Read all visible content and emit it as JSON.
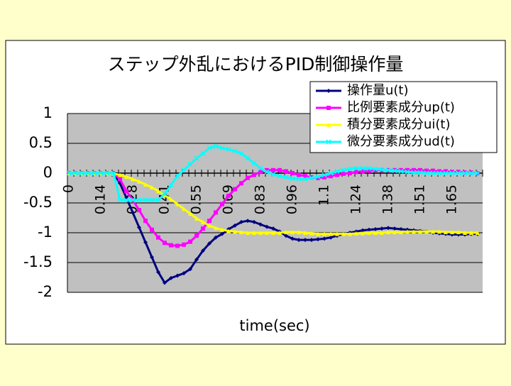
{
  "chart_data": {
    "type": "line",
    "title": "ステップ外乱におけるPID制御操作量",
    "x_label": "time(sec)",
    "categories": [
      "0",
      null,
      null,
      null,
      null,
      "0.14",
      null,
      null,
      null,
      null,
      "0.28",
      null,
      null,
      null,
      null,
      "0.41",
      null,
      null,
      null,
      null,
      "0.55",
      null,
      null,
      null,
      null,
      "0.69",
      null,
      null,
      null,
      null,
      "0.83",
      null,
      null,
      null,
      null,
      "0.96",
      null,
      null,
      null,
      null,
      "1.1",
      null,
      null,
      null,
      null,
      "1.24",
      null,
      null,
      null,
      null,
      "1.38",
      null,
      null,
      null,
      null,
      "1.51",
      null,
      null,
      null,
      null,
      "1.65",
      null,
      null,
      null,
      null
    ],
    "series": [
      {
        "name": "操作量u(t)",
        "color": "#000080",
        "marker": "diamond",
        "values": [
          0,
          0,
          0,
          0,
          0,
          0,
          0,
          0,
          -0.17,
          -0.41,
          -0.66,
          -0.91,
          -1.16,
          -1.41,
          -1.66,
          -1.84,
          -1.76,
          -1.72,
          -1.68,
          -1.61,
          -1.45,
          -1.3,
          -1.18,
          -1.08,
          -1.02,
          -0.94,
          -0.88,
          -0.82,
          -0.8,
          -0.82,
          -0.86,
          -0.9,
          -0.93,
          -0.98,
          -1.05,
          -1.1,
          -1.12,
          -1.12,
          -1.12,
          -1.11,
          -1.1,
          -1.08,
          -1.05,
          -1.02,
          -1,
          -0.98,
          -0.96,
          -0.95,
          -0.94,
          -0.93,
          -0.92,
          -0.93,
          -0.94,
          -0.95,
          -0.96,
          -0.97,
          -0.98,
          -1,
          -1.01,
          -1.02,
          -1.03,
          -1.03,
          -1.03,
          -1.02,
          -1.02
        ]
      },
      {
        "name": "比例要素成分up(t)",
        "color": "#FF00FF",
        "marker": "square",
        "values": [
          0,
          0,
          0,
          0,
          0,
          0,
          0,
          0,
          -0.1,
          -0.3,
          -0.45,
          -0.62,
          -0.8,
          -0.95,
          -1.08,
          -1.17,
          -1.21,
          -1.22,
          -1.2,
          -1.15,
          -1.05,
          -0.93,
          -0.8,
          -0.66,
          -0.52,
          -0.38,
          -0.27,
          -0.17,
          -0.08,
          -0.03,
          0.02,
          0.05,
          0.05,
          0.05,
          0.03,
          0,
          -0.03,
          -0.05,
          -0.07,
          -0.08,
          -0.07,
          -0.05,
          -0.03,
          -0.01,
          0,
          0.02,
          0.03,
          0.04,
          0.05,
          0.05,
          0.05,
          0.05,
          0.05,
          0.05,
          0.05,
          0.05,
          0.04,
          0.04,
          0.03,
          0.03,
          0.02,
          0.02,
          0.01,
          0.01,
          0
        ]
      },
      {
        "name": "積分要素成分ui(t)",
        "color": "#FFFF00",
        "marker": "triangle",
        "values": [
          0,
          0,
          0,
          0,
          0,
          0,
          0,
          -0.01,
          -0.03,
          -0.06,
          -0.1,
          -0.14,
          -0.19,
          -0.24,
          -0.3,
          -0.37,
          -0.44,
          -0.52,
          -0.6,
          -0.68,
          -0.76,
          -0.82,
          -0.88,
          -0.92,
          -0.95,
          -0.97,
          -0.98,
          -0.99,
          -1,
          -1,
          -1,
          -1,
          -1,
          -1,
          -0.99,
          -0.99,
          -0.99,
          -1,
          -1.01,
          -1.02,
          -1.02,
          -1.02,
          -1.02,
          -1.02,
          -1.02,
          -1.01,
          -1.01,
          -1,
          -1,
          -1,
          -0.99,
          -0.99,
          -0.99,
          -0.98,
          -0.98,
          -0.98,
          -0.98,
          -0.98,
          -0.98,
          -0.99,
          -0.99,
          -0.99,
          -1,
          -1,
          -1
        ]
      },
      {
        "name": "微分要素成分ud(t)",
        "color": "#00FFFF",
        "marker": "x",
        "values": [
          0,
          0,
          0,
          0,
          0,
          0,
          0,
          0,
          -0.45,
          -0.45,
          -0.45,
          -0.45,
          -0.45,
          -0.45,
          -0.45,
          -0.35,
          -0.2,
          -0.05,
          0.05,
          0.15,
          0.25,
          0.33,
          0.42,
          0.45,
          0.42,
          0.4,
          0.37,
          0.33,
          0.25,
          0.17,
          0.08,
          0.02,
          -0.02,
          -0.05,
          -0.07,
          -0.09,
          -0.1,
          -0.1,
          -0.08,
          -0.06,
          -0.03,
          0,
          0.03,
          0.05,
          0.07,
          0.08,
          0.08,
          0.08,
          0.07,
          0.06,
          0.05,
          0.04,
          0.03,
          0.02,
          0.01,
          0.01,
          0,
          0,
          0,
          0,
          0,
          0,
          0,
          0,
          0
        ]
      }
    ],
    "ylim": [
      -2,
      1
    ],
    "yticks": [
      1,
      0.5,
      0,
      -0.5,
      -1,
      -1.5,
      -2
    ],
    "grid": true,
    "legend": "top-right"
  }
}
